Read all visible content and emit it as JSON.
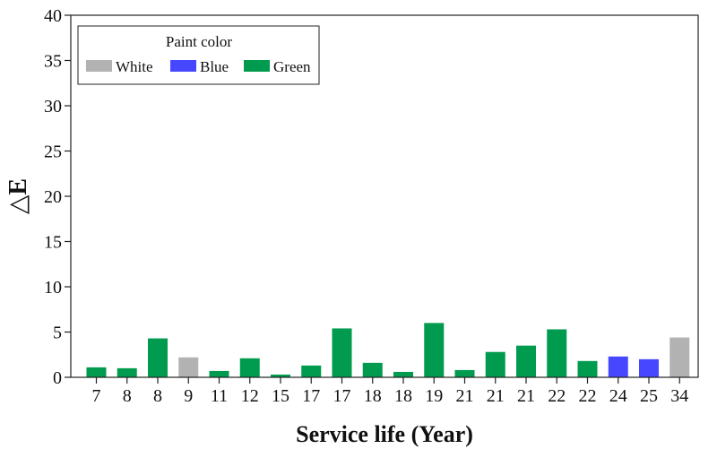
{
  "chart_data": {
    "type": "bar",
    "xlabel": "Service life (Year)",
    "ylabel": "△E",
    "ylim": [
      0,
      40
    ],
    "yticks": [
      0,
      5,
      10,
      15,
      20,
      25,
      30,
      35,
      40
    ],
    "grid": false,
    "legend": {
      "title": "Paint color",
      "placement": "top-left",
      "entries": [
        {
          "name": "White",
          "color": "#b2b2b2"
        },
        {
          "name": "Blue",
          "color": "#4747ff"
        },
        {
          "name": "Green",
          "color": "#009b4e"
        }
      ]
    },
    "categories": [
      "7",
      "8",
      "8",
      "9",
      "11",
      "12",
      "15",
      "17",
      "17",
      "18",
      "18",
      "19",
      "21",
      "21",
      "21",
      "22",
      "22",
      "24",
      "25",
      "34"
    ],
    "values": [
      1.1,
      1.0,
      4.3,
      2.2,
      0.7,
      2.1,
      0.3,
      1.3,
      5.4,
      1.6,
      0.6,
      6.0,
      0.8,
      2.8,
      3.5,
      5.3,
      1.8,
      2.3,
      2.0,
      4.4
    ],
    "colors": [
      "Green",
      "Green",
      "Green",
      "White",
      "Green",
      "Green",
      "Green",
      "Green",
      "Green",
      "Green",
      "Green",
      "Green",
      "Green",
      "Green",
      "Green",
      "Green",
      "Green",
      "Blue",
      "Blue",
      "White"
    ]
  }
}
